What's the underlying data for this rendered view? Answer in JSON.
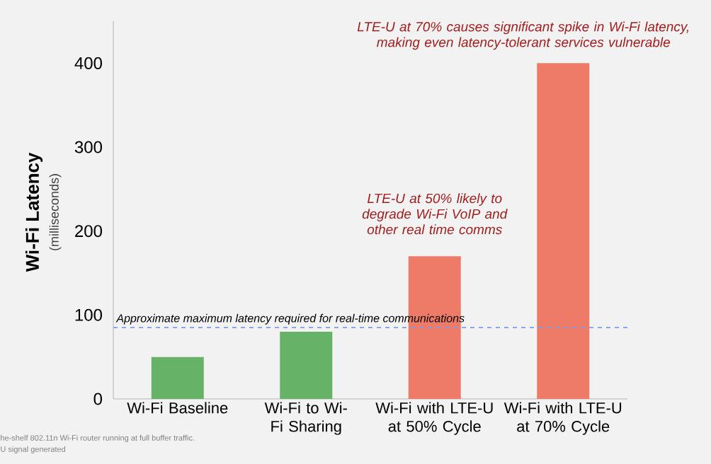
{
  "chart_data": {
    "type": "bar",
    "ylabel": "Wi-Fi Latency",
    "categories": [
      "Wi-Fi Baseline",
      "Wi-Fi to Wi-Fi Sharing",
      "Wi-Fi with LTE-U at 50% Cycle",
      "Wi-Fi with LTE-U at 70% Cycle"
    ],
    "values": [
      50,
      80,
      170,
      400
    ],
    "colors": [
      "#66b266",
      "#66b266",
      "#ee7b68",
      "#ee7b68"
    ],
    "ylim": [
      0,
      450
    ],
    "yticks": [
      0,
      100,
      200,
      300,
      400
    ],
    "ref_lines": [
      {
        "axis": "y",
        "value": 85,
        "label": "Approximate maximum latency required for real-time communications",
        "color": "#7b9cf0",
        "line_style": "dashed"
      }
    ],
    "annotations": [
      {
        "text": "LTE-U at 50% likely to degrade Wi-Fi VoIP and other real time comms",
        "x": "Wi-Fi with LTE-U at 50% Cycle",
        "y": 170
      },
      {
        "text": "LTE-U at 70% causes significant spike in Wi-Fi latency, making even latency-tolerant services vulnerable",
        "x": "Wi-Fi with LTE-U at 70% Cycle",
        "y": 400
      },
      "(milliseconds)",
      "he-shelf 802.11n Wi-Fi router running at full buffer traffic.",
      "U signal generated"
    ]
  }
}
